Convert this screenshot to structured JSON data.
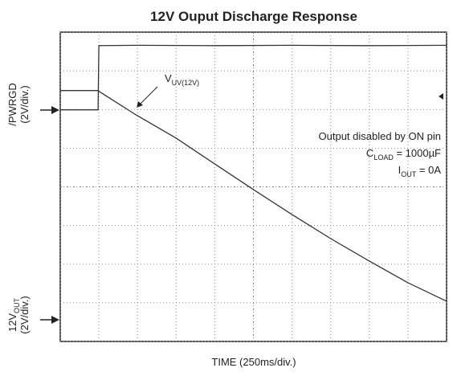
{
  "chart_data": {
    "type": "line",
    "title": "12V Ouput Discharge Response",
    "x_label": "TIME (250ms/div.)",
    "xlim": [
      0,
      2500
    ],
    "ylim": [
      0,
      8
    ],
    "xticks": [
      0,
      250,
      500,
      750,
      1000,
      1250,
      1500,
      1750,
      2000,
      2250,
      2500
    ],
    "yticks": [
      0,
      1,
      2,
      3,
      4,
      5,
      6,
      7,
      8
    ],
    "show_tick_labels": false,
    "grid": true,
    "series": [
      {
        "label_lines": [
          [
            "/PWRGD"
          ],
          [
            "(2V/div.)"
          ]
        ],
        "color": "#333333",
        "x": [
          0,
          245,
          250,
          500,
          1000,
          1500,
          2000,
          2500
        ],
        "values": [
          5.99,
          5.99,
          7.65,
          7.66,
          7.65,
          7.66,
          7.65,
          7.66
        ]
      },
      {
        "label_lines": [
          [
            "12V",
            "OUT"
          ],
          [
            "(2V/div.)"
          ]
        ],
        "color": "#333333",
        "x": [
          0,
          245,
          250,
          490,
          750,
          1000,
          1250,
          1500,
          1750,
          2000,
          2250,
          2500
        ],
        "values": [
          6.49,
          6.49,
          6.47,
          5.86,
          5.26,
          4.59,
          3.93,
          3.28,
          2.66,
          2.08,
          1.52,
          1.04
        ]
      }
    ],
    "annotations": [
      {
        "text": [
          "V",
          "UV(12V)"
        ]
      },
      {
        "text": [
          "Output disabled by ON pin"
        ]
      },
      {
        "text": [
          "C",
          "LOAD",
          " = 1000µF"
        ]
      },
      {
        "text": [
          "I",
          "OUT",
          " = 0A"
        ]
      }
    ]
  }
}
